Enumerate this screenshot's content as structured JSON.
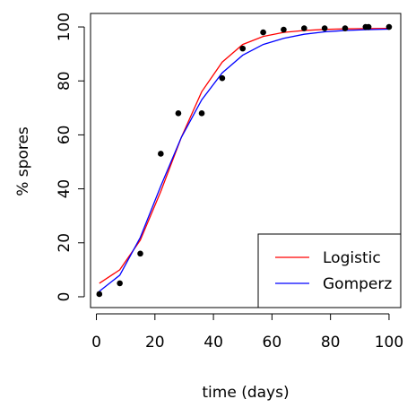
{
  "chart_data": {
    "type": "scatter",
    "xlabel": "time (days)",
    "ylabel": "% spores",
    "xlim": [
      -2,
      104
    ],
    "ylim": [
      -4,
      105
    ],
    "xticks": [
      0,
      20,
      40,
      60,
      80,
      100
    ],
    "yticks": [
      0,
      20,
      40,
      60,
      80,
      100
    ],
    "points": {
      "x": [
        1,
        8,
        15,
        22,
        28,
        36,
        43,
        50,
        57,
        64,
        71,
        78,
        85,
        92,
        93,
        100
      ],
      "y": [
        1,
        5,
        16,
        53,
        68,
        68,
        81,
        92,
        98,
        99,
        99.5,
        99.5,
        99.5,
        100,
        100,
        100
      ]
    },
    "series": [
      {
        "name": "Logistic",
        "color": "#ff0000",
        "x": [
          1,
          8,
          15,
          22,
          29,
          36,
          43,
          50,
          57,
          64,
          71,
          78,
          85,
          92,
          100
        ],
        "y": [
          5,
          10,
          21,
          39,
          59,
          76,
          87,
          93.5,
          96.5,
          98,
          98.7,
          99.1,
          99.3,
          99.4,
          99.5
        ]
      },
      {
        "name": "Gomperz",
        "color": "#0000ff",
        "x": [
          1,
          8,
          15,
          22,
          29,
          36,
          43,
          50,
          57,
          64,
          71,
          78,
          85,
          92,
          100
        ],
        "y": [
          2,
          8,
          22,
          41,
          59,
          73,
          83,
          89.5,
          93.5,
          95.8,
          97.3,
          98.2,
          98.7,
          99.0,
          99.2
        ]
      }
    ],
    "legend_position": "bottom-right"
  }
}
